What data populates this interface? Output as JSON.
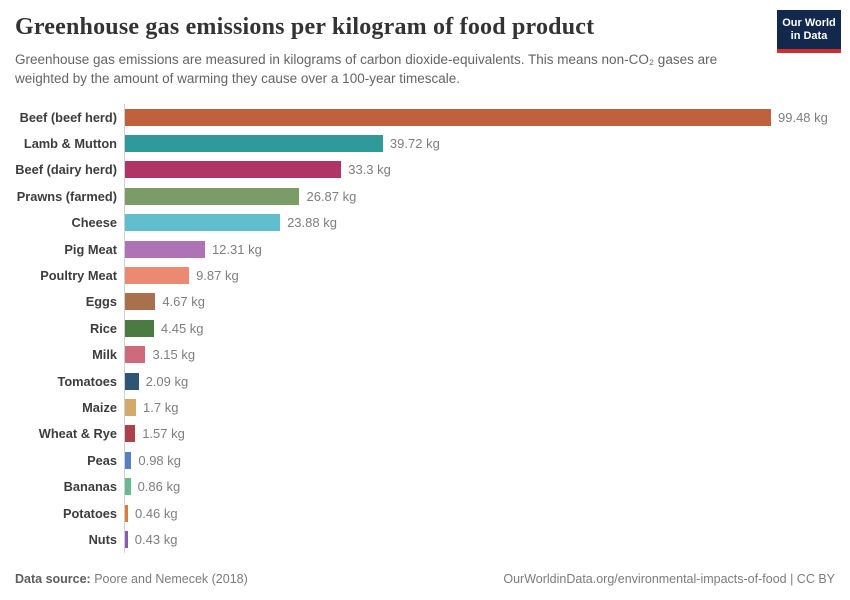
{
  "header": {
    "title": "Greenhouse gas emissions per kilogram of food product",
    "subtitle": "Greenhouse gas emissions are measured in kilograms of carbon dioxide-equivalents. This means non-CO₂ gases are weighted by the amount of warming they cause over a 100-year timescale.",
    "logo": {
      "line1": "Our World",
      "line2": "in Data",
      "bg_color": "#12294d",
      "accent_color": "#d22c2c"
    }
  },
  "chart_data": {
    "type": "bar",
    "orientation": "horizontal",
    "title": "Greenhouse gas emissions per kilogram of food product",
    "unit": "kg",
    "xlabel": "",
    "ylabel": "",
    "xlim": [
      0,
      100
    ],
    "grid": false,
    "legend": "none",
    "categories": [
      "Beef (beef herd)",
      "Lamb & Mutton",
      "Beef (dairy herd)",
      "Prawns (farmed)",
      "Cheese",
      "Pig Meat",
      "Poultry Meat",
      "Eggs",
      "Rice",
      "Milk",
      "Tomatoes",
      "Maize",
      "Wheat & Rye",
      "Peas",
      "Bananas",
      "Potatoes",
      "Nuts"
    ],
    "values": [
      99.48,
      39.72,
      33.3,
      26.87,
      23.88,
      12.31,
      9.87,
      4.67,
      4.45,
      3.15,
      2.09,
      1.7,
      1.57,
      0.98,
      0.86,
      0.46,
      0.43
    ],
    "value_labels": [
      "99.48 kg",
      "39.72 kg",
      "33.3 kg",
      "26.87 kg",
      "23.88 kg",
      "12.31 kg",
      "9.87 kg",
      "4.67 kg",
      "4.45 kg",
      "3.15 kg",
      "2.09 kg",
      "1.7 kg",
      "1.57 kg",
      "0.98 kg",
      "0.86 kg",
      "0.46 kg",
      "0.43 kg"
    ],
    "bar_colors": [
      "#c0613e",
      "#2e9a99",
      "#b03566",
      "#7a9d68",
      "#60bece",
      "#ae73b7",
      "#ea8a73",
      "#a8714d",
      "#4b7a43",
      "#cd6a7c",
      "#2e5476",
      "#d3a96c",
      "#ad414b",
      "#5580c4",
      "#68b98e",
      "#dd7c36",
      "#8859b9"
    ]
  },
  "footer": {
    "source_label": "Data source:",
    "source_value": " Poore and Nemecek (2018)",
    "link": "OurWorldinData.org/environmental-impacts-of-food | CC BY"
  }
}
